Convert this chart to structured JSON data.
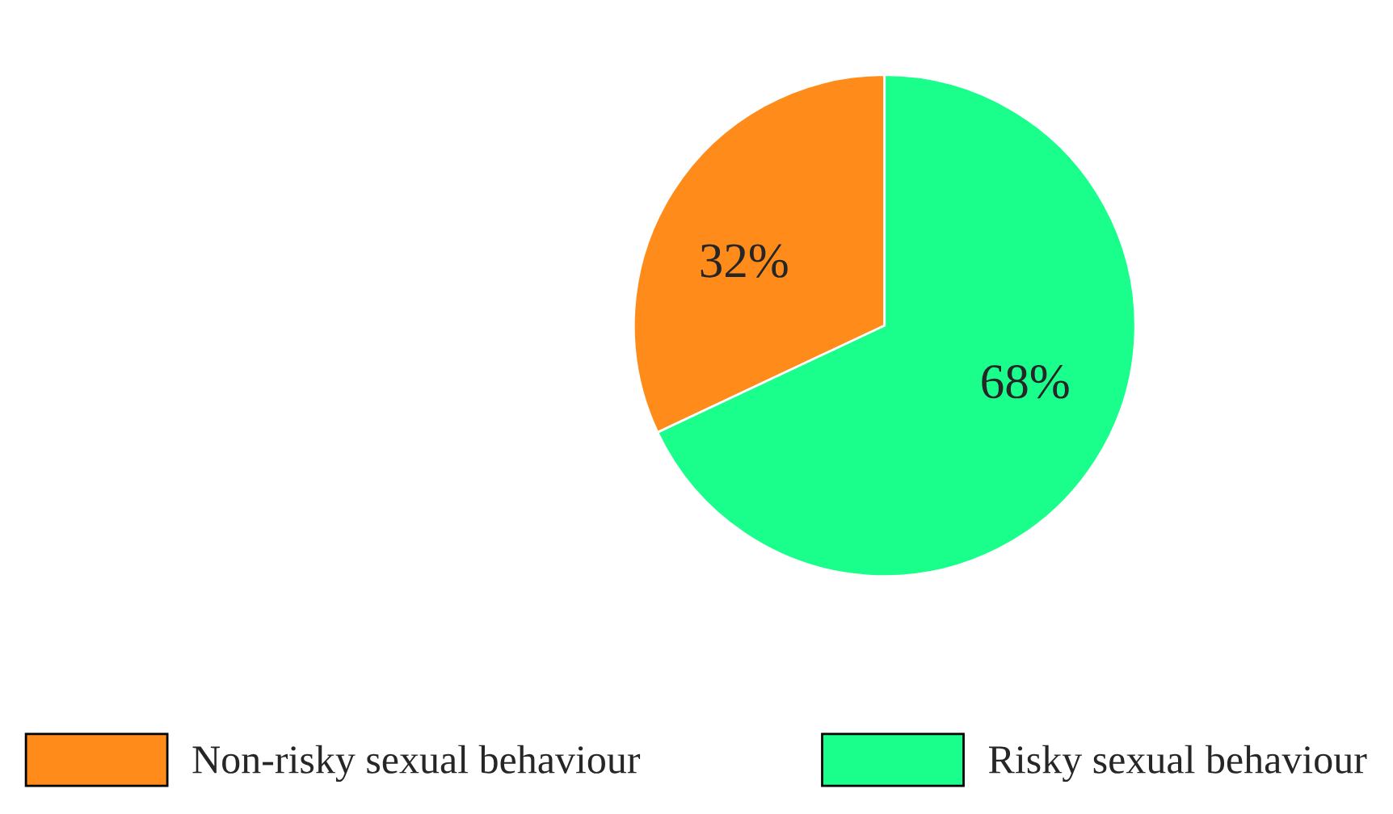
{
  "chart_data": {
    "type": "pie",
    "categories": [
      "Non-risky sexual behaviour",
      "Risky sexual behaviour"
    ],
    "values": [
      32,
      68
    ],
    "value_labels": [
      "32%",
      "68%"
    ],
    "colors": [
      "#ff8c1a",
      "#1aff8c"
    ],
    "legend": "bottom"
  }
}
